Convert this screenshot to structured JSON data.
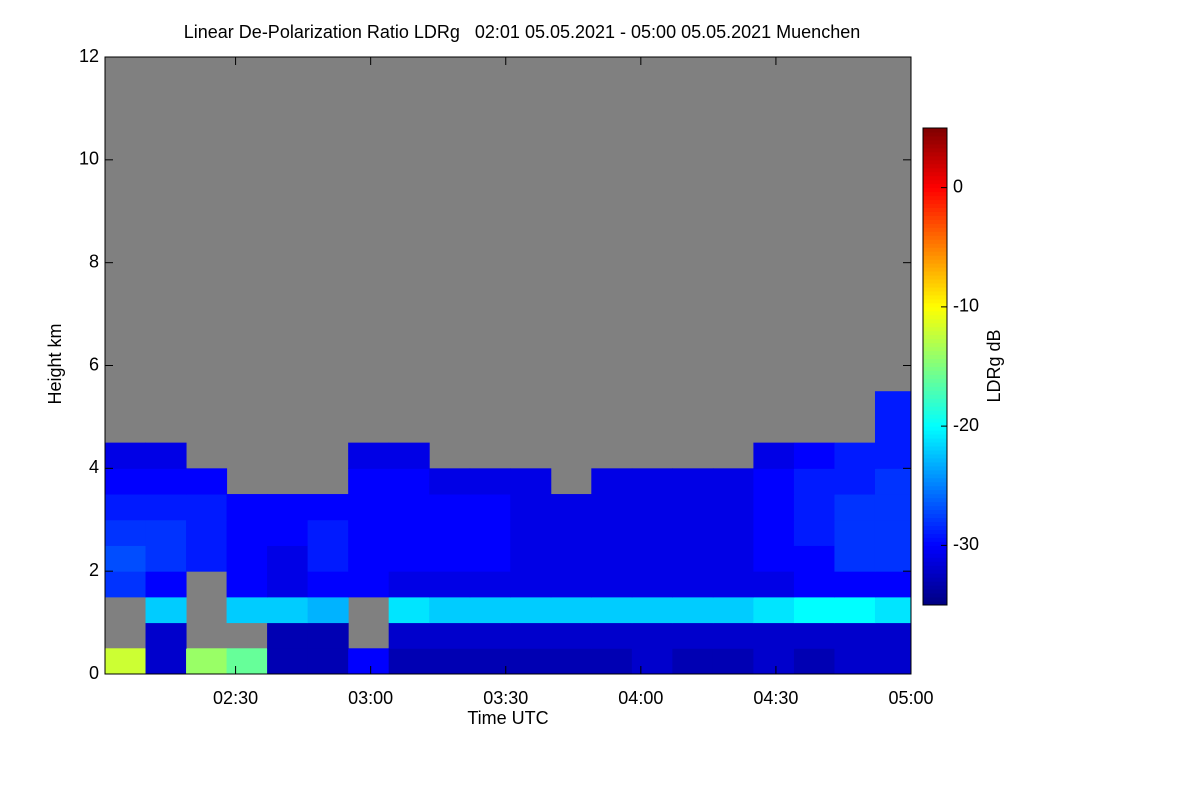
{
  "chart_data": {
    "type": "heatmap",
    "title": "Linear De-Polarization Ratio LDRg   02:01 05.05.2021 - 05:00 05.05.2021 Muenchen",
    "x_label": "Time UTC",
    "y_label": "Height km",
    "colorbar_label": "LDRg dB",
    "colormap": "jet",
    "missing_color": "#808080",
    "xlim": [
      121,
      300
    ],
    "xticks": [
      {
        "value": 150,
        "label": "02:30"
      },
      {
        "value": 180,
        "label": "03:00"
      },
      {
        "value": 210,
        "label": "03:30"
      },
      {
        "value": 240,
        "label": "04:00"
      },
      {
        "value": 270,
        "label": "04:30"
      },
      {
        "value": 300,
        "label": "05:00"
      }
    ],
    "ylim": [
      0,
      12
    ],
    "yticks": [
      0,
      2,
      4,
      6,
      8,
      10,
      12
    ],
    "zlim": [
      -35,
      5
    ],
    "zticks": [
      0,
      -10,
      -20,
      -30
    ],
    "xbins": [
      121,
      130,
      139,
      148,
      157,
      166,
      175,
      184,
      193,
      202,
      211,
      220,
      229,
      238,
      247,
      256,
      265,
      274,
      283,
      292,
      300
    ],
    "ybins": [
      0,
      0.5,
      1,
      1.5,
      2,
      2.5,
      3,
      3.5,
      4,
      4.5,
      5,
      5.5,
      6
    ],
    "z": [
      [
        -12,
        -32,
        -14,
        -16,
        -33,
        -33,
        -30,
        -33,
        -33,
        -33,
        -33,
        -33,
        -33,
        -32,
        -33,
        -33,
        -32,
        -33,
        -32,
        -32
      ],
      [
        null,
        -32,
        null,
        null,
        -33,
        -33,
        null,
        -32,
        -32,
        -32,
        -32,
        -32,
        -32,
        -32,
        -32,
        -32,
        -32,
        -32,
        -32,
        -32
      ],
      [
        null,
        -22,
        null,
        -22,
        -22,
        -23,
        null,
        -21,
        -22,
        -22,
        -22,
        -22,
        -22,
        -22,
        -22,
        -22,
        -21,
        -20,
        -20,
        -21
      ],
      [
        -28,
        -30,
        null,
        -30,
        -31,
        -30,
        -30,
        -31,
        -31,
        -31,
        -31,
        -31,
        -31,
        -31,
        -31,
        -31,
        -31,
        -30,
        -30,
        -30
      ],
      [
        -27,
        -28,
        -29,
        -30,
        -31,
        -29,
        -30,
        -30,
        -30,
        -30,
        -31,
        -31,
        -31,
        -31,
        -31,
        -31,
        -30,
        -30,
        -28,
        -28
      ],
      [
        -28,
        -28,
        -29,
        -30,
        -30,
        -29,
        -30,
        -30,
        -30,
        -30,
        -31,
        -31,
        -31,
        -31,
        -31,
        -31,
        -30,
        -29,
        -28,
        -28
      ],
      [
        -29,
        -29,
        -29,
        -30,
        -30,
        -30,
        -30,
        -30,
        -30,
        -30,
        -31,
        -31,
        -31,
        -31,
        -31,
        -31,
        -30,
        -29,
        -28,
        -28
      ],
      [
        -30,
        -30,
        -30,
        null,
        null,
        null,
        -30,
        -30,
        -31,
        -31,
        -31,
        null,
        -31,
        -31,
        -31,
        -31,
        -30,
        -29,
        -29,
        -28
      ],
      [
        -31,
        -31,
        null,
        null,
        null,
        null,
        -31,
        -31,
        null,
        null,
        null,
        null,
        null,
        null,
        null,
        null,
        -31,
        -30,
        -29,
        -29
      ],
      [
        null,
        null,
        null,
        null,
        null,
        null,
        null,
        null,
        null,
        null,
        null,
        null,
        null,
        null,
        null,
        null,
        null,
        null,
        null,
        -29
      ],
      [
        null,
        null,
        null,
        null,
        null,
        null,
        null,
        null,
        null,
        null,
        null,
        null,
        null,
        null,
        null,
        null,
        null,
        null,
        null,
        -29
      ],
      [
        null,
        null,
        null,
        null,
        null,
        null,
        null,
        null,
        null,
        null,
        null,
        null,
        null,
        null,
        null,
        null,
        null,
        null,
        null,
        null
      ]
    ]
  }
}
